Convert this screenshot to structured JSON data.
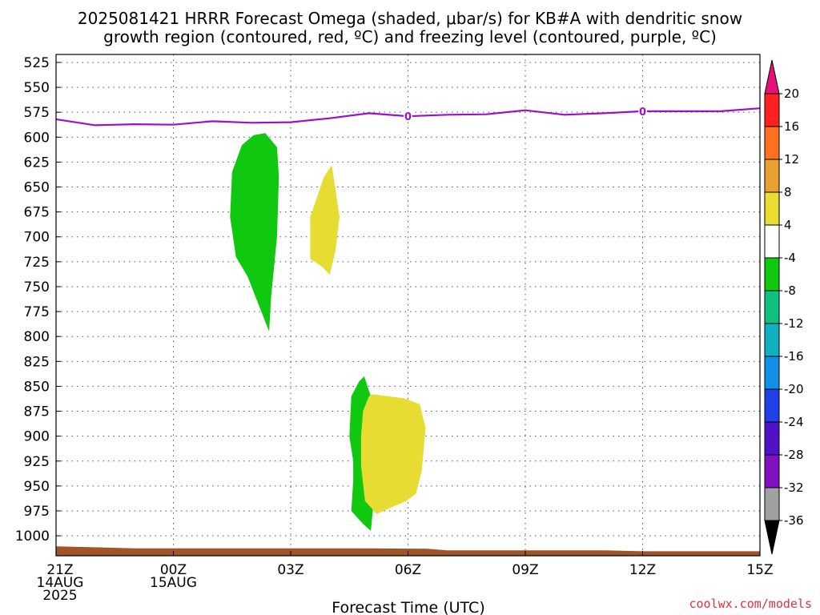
{
  "chart_data": {
    "type": "area",
    "title_lines": [
      "2025081421 HRRR Forecast Omega (shaded, μbar/s) for KB#A with dendritic snow",
      "growth region (contoured, red, ºC) and freezing level (contoured, purple, ºC)"
    ],
    "xlabel": "Forecast Time (UTC)",
    "credit": "coolwx.com/models",
    "x_range_hours": [
      0,
      18
    ],
    "y_range_hpa": [
      517,
      1020
    ],
    "y_ticks": [
      525,
      550,
      575,
      600,
      625,
      650,
      675,
      700,
      725,
      750,
      775,
      800,
      825,
      850,
      875,
      900,
      925,
      950,
      975,
      1000
    ],
    "x_ticks": [
      {
        "hour": 0,
        "lines": [
          "21Z",
          "14AUG",
          "2025"
        ]
      },
      {
        "hour": 3,
        "lines": [
          "00Z",
          "15AUG"
        ]
      },
      {
        "hour": 6,
        "lines": [
          "03Z"
        ]
      },
      {
        "hour": 9,
        "lines": [
          "06Z"
        ]
      },
      {
        "hour": 12,
        "lines": [
          "09Z"
        ]
      },
      {
        "hour": 15,
        "lines": [
          "12Z"
        ]
      },
      {
        "hour": 18,
        "lines": [
          "15Z"
        ]
      }
    ],
    "grid": true,
    "colorbar": {
      "labels": [
        "20",
        "16",
        "12",
        "8",
        "4",
        "-4",
        "-8",
        "-12",
        "-16",
        "-20",
        "-24",
        "-28",
        "-32",
        "-36"
      ],
      "colors": [
        "#ff2020",
        "#ff7020",
        "#e8a030",
        "#e8dd30",
        "#ffffff",
        "#10c810",
        "#10c080",
        "#10b0c0",
        "#1090e8",
        "#2040e8",
        "#5010c8",
        "#8010c0",
        "#a0a0a0"
      ],
      "top_arrow_color": "#e8107a",
      "bottom_arrow_color": "#000000"
    },
    "freezing_level": {
      "color": "#9b10c8",
      "label": "0",
      "points": [
        [
          0,
          582
        ],
        [
          1,
          588
        ],
        [
          2,
          587
        ],
        [
          3,
          587.5
        ],
        [
          4,
          584
        ],
        [
          5,
          585.5
        ],
        [
          6,
          585
        ],
        [
          7,
          581
        ],
        [
          8,
          576
        ],
        [
          9,
          579
        ],
        [
          10,
          577.5
        ],
        [
          11,
          577
        ],
        [
          12,
          573
        ],
        [
          13,
          577.5
        ],
        [
          14,
          576
        ],
        [
          15,
          574
        ],
        [
          16,
          574
        ],
        [
          17,
          574
        ],
        [
          18,
          571
        ]
      ],
      "label_hours": [
        9,
        15
      ]
    },
    "omega_regions": [
      {
        "value_band": "-8 to -4",
        "color": "#10c810",
        "outline": [
          [
            5.35,
            596
          ],
          [
            5.65,
            610
          ],
          [
            5.7,
            640
          ],
          [
            5.65,
            700
          ],
          [
            5.5,
            760
          ],
          [
            5.45,
            795
          ],
          [
            5.2,
            770
          ],
          [
            4.9,
            740
          ],
          [
            4.6,
            720
          ],
          [
            4.45,
            680
          ],
          [
            4.5,
            635
          ],
          [
            4.75,
            608
          ],
          [
            5.05,
            598
          ]
        ]
      },
      {
        "value_band": "4 to 8",
        "color": "#e6dc32",
        "outline": [
          [
            7.05,
            628
          ],
          [
            7.25,
            680
          ],
          [
            7.15,
            713
          ],
          [
            7.0,
            738
          ],
          [
            6.8,
            730
          ],
          [
            6.5,
            722
          ],
          [
            6.5,
            680
          ],
          [
            6.85,
            640
          ]
        ]
      },
      {
        "value_band": "-8 to -4",
        "color": "#10c810",
        "outline": [
          [
            7.88,
            840
          ],
          [
            8.05,
            860
          ],
          [
            8.15,
            900
          ],
          [
            8.05,
            940
          ],
          [
            8.1,
            975
          ],
          [
            8.05,
            995
          ],
          [
            7.85,
            988
          ],
          [
            7.55,
            975
          ],
          [
            7.6,
            945
          ],
          [
            7.6,
            925
          ],
          [
            7.5,
            900
          ],
          [
            7.55,
            860
          ],
          [
            7.75,
            845
          ]
        ]
      },
      {
        "value_band": "4 to 8",
        "color": "#e6dc32",
        "outline": [
          [
            8.1,
            858
          ],
          [
            8.9,
            862
          ],
          [
            9.3,
            868
          ],
          [
            9.45,
            892
          ],
          [
            9.35,
            935
          ],
          [
            9.2,
            958
          ],
          [
            8.95,
            965
          ],
          [
            8.2,
            978
          ],
          [
            7.9,
            965
          ],
          [
            7.8,
            930
          ],
          [
            7.8,
            900
          ],
          [
            7.85,
            875
          ],
          [
            8.0,
            860
          ]
        ]
      }
    ],
    "terrain": {
      "color": "#a0542a",
      "surface": [
        [
          0,
          1010.5
        ],
        [
          2,
          1012.5
        ],
        [
          5,
          1012.5
        ],
        [
          8,
          1012.5
        ],
        [
          9.5,
          1013
        ],
        [
          10,
          1014.5
        ],
        [
          14,
          1014.5
        ],
        [
          15,
          1015.5
        ],
        [
          18,
          1015.5
        ]
      ]
    }
  }
}
